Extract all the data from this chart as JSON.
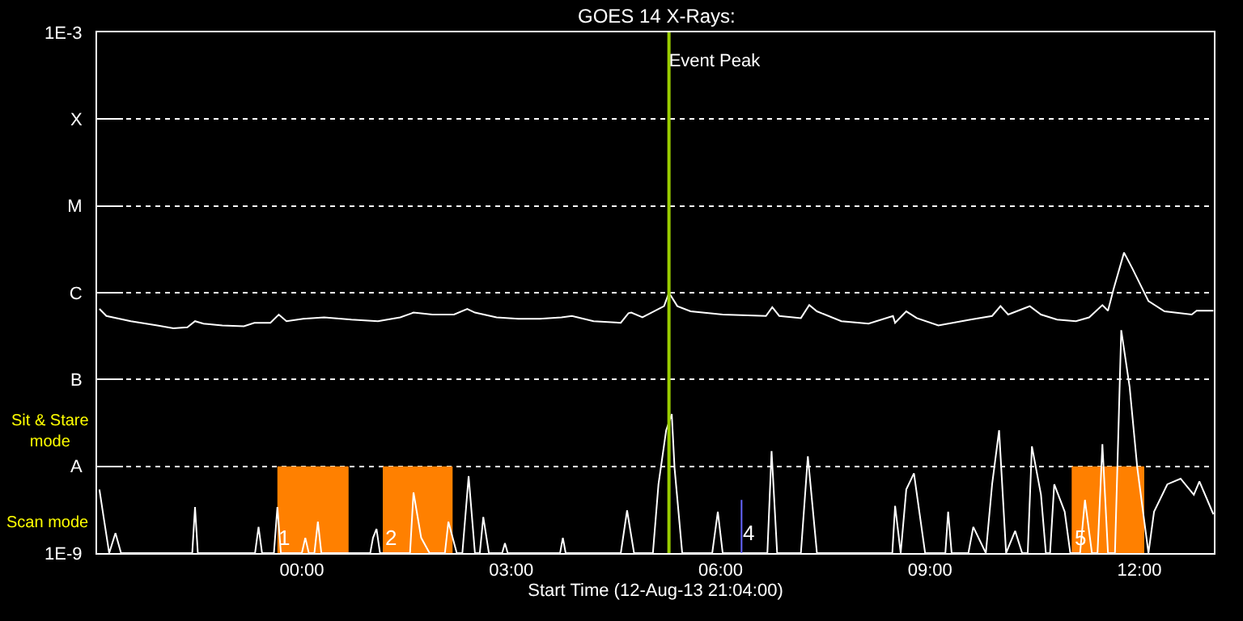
{
  "chart_data": {
    "type": "line",
    "title": "GOES 14 X-Rays:",
    "xlabel": "Start Time (12-Aug-13 21:04:00)",
    "xlim": [
      -2.933,
      13.067
    ],
    "xticks": [
      {
        "value": 0,
        "label": "00:00"
      },
      {
        "value": 3,
        "label": "03:00"
      },
      {
        "value": 6,
        "label": "06:00"
      },
      {
        "value": 9,
        "label": "09:00"
      },
      {
        "value": 12,
        "label": "12:00"
      }
    ],
    "ylim": [
      1e-09,
      0.001
    ],
    "log": true,
    "yticks": [
      {
        "value": 1e-09,
        "label": "1E-9"
      },
      {
        "value": 1e-08,
        "label": "A"
      },
      {
        "value": 1e-07,
        "label": "B"
      },
      {
        "value": 1e-06,
        "label": "C"
      },
      {
        "value": 1e-05,
        "label": "M"
      },
      {
        "value": 0.0001,
        "label": "X"
      },
      {
        "value": 0.001,
        "label": "1E-3"
      }
    ],
    "grid": "y",
    "legend": false,
    "series": [
      {
        "type": "area",
        "color": "#ff8000",
        "x": [
          -0.35,
          -0.35,
          0.67,
          0.67,
          null,
          1.16,
          1.16,
          2.16,
          2.16,
          null,
          11.03,
          11.03,
          12.07,
          12.07
        ],
        "values": [
          1e-09,
          1e-08,
          1e-08,
          1e-09,
          null,
          1e-09,
          1e-08,
          1e-08,
          1e-09,
          null,
          1e-09,
          1e-08,
          1e-08,
          1e-09
        ]
      },
      {
        "color": "#ffffff",
        "x": [
          -2.9,
          -2.8,
          -2.45,
          -2.07,
          -1.84,
          -1.64,
          -1.53,
          -1.41,
          -1.14,
          -0.83,
          -0.68,
          -0.45,
          -0.33,
          -0.22,
          0.02,
          0.32,
          0.71,
          1.09,
          1.41,
          1.6,
          1.87,
          2.18,
          2.37,
          2.48,
          2.79,
          3.1,
          3.41,
          3.72,
          3.87,
          4.18,
          4.57,
          4.68,
          4.72,
          4.88,
          5.19,
          5.26,
          5.38,
          5.57,
          6.03,
          6.65,
          6.74,
          6.84,
          7.15,
          7.27,
          7.38,
          7.73,
          8.12,
          8.47,
          8.5,
          8.66,
          8.81,
          9.12,
          9.58,
          9.89,
          10.01,
          10.12,
          10.43,
          10.59,
          10.82,
          11.09,
          11.28,
          11.47,
          11.55,
          11.63,
          11.78,
          11.9,
          12.13,
          12.36,
          12.75,
          12.82,
          13.06
        ],
        "values": [
          6.5e-07,
          5.4e-07,
          4.7e-07,
          4.2e-07,
          3.9e-07,
          4e-07,
          4.7e-07,
          4.4e-07,
          4.2e-07,
          4.1e-07,
          4.5e-07,
          4.5e-07,
          5.6e-07,
          4.7e-07,
          5e-07,
          5.2e-07,
          4.9e-07,
          4.7e-07,
          5.2e-07,
          5.9e-07,
          5.6e-07,
          5.6e-07,
          6.5e-07,
          5.9e-07,
          5.2e-07,
          5e-07,
          5e-07,
          5.2e-07,
          5.4e-07,
          4.7e-07,
          4.5e-07,
          5.8e-07,
          5.9e-07,
          5.2e-07,
          7e-07,
          1e-06,
          7e-07,
          6.1e-07,
          5.6e-07,
          5.4e-07,
          6.8e-07,
          5.4e-07,
          5.1e-07,
          7.2e-07,
          6.1e-07,
          4.7e-07,
          4.4e-07,
          5.4e-07,
          4.5e-07,
          6.1e-07,
          5.1e-07,
          4.2e-07,
          4.9e-07,
          5.4e-07,
          7e-07,
          5.6e-07,
          7e-07,
          5.6e-07,
          4.9e-07,
          4.7e-07,
          5.2e-07,
          7.2e-07,
          6.2e-07,
          1.1e-06,
          2.9e-06,
          1.9e-06,
          8e-07,
          6.1e-07,
          5.6e-07,
          6.2e-07,
          6.2e-07
        ]
      },
      {
        "color": "#ffffff",
        "x": [
          -2.9,
          -2.84,
          -2.76,
          -2.67,
          -2.59,
          -1.57,
          -1.53,
          -1.49,
          -0.67,
          -0.62,
          -0.57,
          -0.4,
          -0.35,
          -0.3,
          0.0,
          0.05,
          0.1,
          0.18,
          0.23,
          0.28,
          0.98,
          1.02,
          1.07,
          1.12,
          1.55,
          1.6,
          1.71,
          1.83,
          2.05,
          2.1,
          2.22,
          2.3,
          2.39,
          2.48,
          2.55,
          2.6,
          2.68,
          2.87,
          2.91,
          2.95,
          3.7,
          3.74,
          3.78,
          4.57,
          4.66,
          4.76,
          5.03,
          5.11,
          5.22,
          5.3,
          5.34,
          5.45,
          5.88,
          5.96,
          6.03,
          6.67,
          6.73,
          6.81,
          7.15,
          7.25,
          7.38,
          8.46,
          8.5,
          8.58,
          8.66,
          8.77,
          8.93,
          9.22,
          9.26,
          9.31,
          9.55,
          9.62,
          9.8,
          9.89,
          9.99,
          10.09,
          10.22,
          10.32,
          10.4,
          10.46,
          10.59,
          10.66,
          10.72,
          10.78,
          10.93,
          11.01,
          11.15,
          11.22,
          11.32,
          11.4,
          11.47,
          11.55,
          11.65,
          11.74,
          11.86,
          11.97,
          12.13,
          12.21,
          12.4,
          12.59,
          12.78,
          12.86,
          13.06
        ],
        "values": [
          5.4e-09,
          2.6e-09,
          1e-09,
          1.7e-09,
          1e-09,
          1e-09,
          3.4e-09,
          1e-09,
          1e-09,
          2e-09,
          1e-09,
          1e-09,
          3.4e-09,
          1e-09,
          1e-09,
          1.5e-09,
          1e-09,
          1e-09,
          2.3e-09,
          1e-09,
          1e-09,
          1.5e-09,
          1.9e-09,
          1e-09,
          1e-09,
          5e-09,
          1.5e-09,
          1e-09,
          1e-09,
          2.3e-09,
          1e-09,
          1e-09,
          7.7e-09,
          1e-09,
          1e-09,
          2.6e-09,
          1e-09,
          1e-09,
          1.3e-09,
          1e-09,
          1e-09,
          1.5e-09,
          1e-09,
          1e-09,
          3.1e-09,
          1e-09,
          1e-09,
          6.2e-09,
          2.6e-08,
          4e-08,
          9.6e-09,
          1e-09,
          1e-09,
          3e-09,
          1e-09,
          1e-09,
          1.5e-08,
          1e-09,
          1e-09,
          1.3e-08,
          1e-09,
          1e-09,
          3.5e-09,
          1e-09,
          5.4e-09,
          8.3e-09,
          1e-09,
          1e-09,
          3e-09,
          1e-09,
          1e-09,
          2e-09,
          1e-09,
          6.2e-09,
          2.6e-08,
          1e-09,
          1.8e-09,
          1e-09,
          1e-09,
          1.7e-08,
          4.7e-09,
          1e-09,
          1e-09,
          6.2e-09,
          3e-09,
          1e-09,
          1e-09,
          4.1e-09,
          1e-09,
          1e-09,
          1.8e-08,
          1e-09,
          1e-09,
          3.7e-07,
          8.2e-08,
          9.6e-09,
          1e-09,
          3e-09,
          6.2e-09,
          7.2e-09,
          4.7e-09,
          6.7e-09,
          2.8e-09
        ]
      },
      {
        "color": "#6666ff",
        "x": [
          6.3,
          6.3
        ],
        "values": [
          1e-09,
          4.1e-09
        ]
      }
    ],
    "ref_lines": [
      {
        "axis": "x",
        "value": 5.26,
        "label": "Event Peak",
        "color": "#99cc00"
      }
    ],
    "annotations": [
      "Sit & Stare\nmode",
      "Scan mode",
      {
        "text": "1",
        "x": -0.25,
        "y": 1.5e-09
      },
      {
        "text": "2",
        "x": 1.27,
        "y": 1.5e-09
      },
      {
        "text": "4",
        "x": 6.39,
        "y": 1.7e-09
      },
      {
        "text": "5",
        "x": 11.16,
        "y": 1.5e-09
      }
    ]
  }
}
